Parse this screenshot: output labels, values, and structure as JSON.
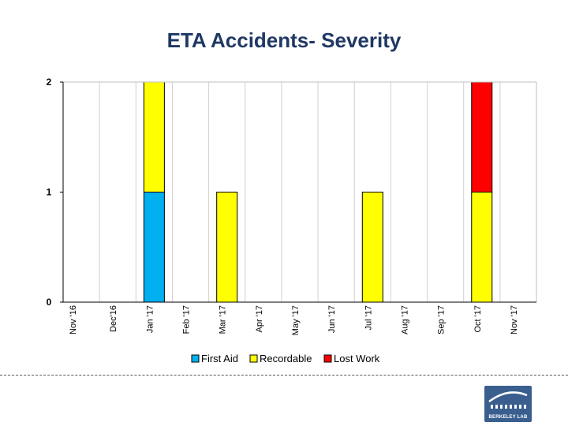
{
  "chart_data": {
    "type": "bar",
    "stacked": true,
    "title": "ETA Accidents-  Severity",
    "xlabel": "",
    "ylabel": "",
    "ylim": [
      0,
      2
    ],
    "yticks": [
      "0",
      "1",
      "2"
    ],
    "grid": "vertical",
    "legend_position": "bottom",
    "categories": [
      "Nov '16",
      "Dec'16",
      "Jan '17",
      "Feb '17",
      "Mar '17",
      "Apr '17",
      "May '17",
      "Jun '17",
      "Jul '17",
      "Aug '17",
      "Sep '17",
      "Oct '17",
      "Nov '17"
    ],
    "series": [
      {
        "name": "First Aid",
        "color": "#00b0f0",
        "values": [
          0,
          0,
          1,
          0,
          0,
          0,
          0,
          0,
          0,
          0,
          0,
          0,
          0
        ]
      },
      {
        "name": "Recordable",
        "color": "#ffff00",
        "values": [
          0,
          0,
          1,
          0,
          1,
          0,
          0,
          0,
          1,
          0,
          0,
          1,
          0
        ]
      },
      {
        "name": "Lost Work",
        "color": "#ff0000",
        "values": [
          0,
          0,
          0,
          0,
          0,
          0,
          0,
          0,
          0,
          0,
          0,
          1,
          0
        ]
      }
    ]
  },
  "logo": {
    "text": "BERKELEY LAB",
    "icon": "berkeley-lab-logo-icon"
  }
}
